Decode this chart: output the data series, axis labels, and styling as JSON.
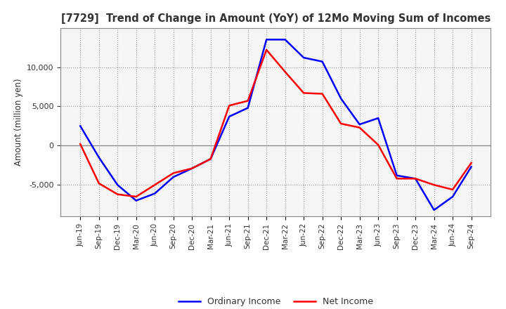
{
  "title": "[7729]  Trend of Change in Amount (YoY) of 12Mo Moving Sum of Incomes",
  "ylabel": "Amount (million yen)",
  "background_color": "#ffffff",
  "plot_background_color": "#f5f5f5",
  "grid_color": "#999999",
  "x_labels": [
    "Jun-19",
    "Sep-19",
    "Dec-19",
    "Mar-20",
    "Jun-20",
    "Sep-20",
    "Dec-20",
    "Mar-21",
    "Jun-21",
    "Sep-21",
    "Dec-21",
    "Mar-22",
    "Jun-22",
    "Sep-22",
    "Dec-22",
    "Mar-23",
    "Jun-23",
    "Sep-23",
    "Dec-23",
    "Mar-24",
    "Jun-24",
    "Sep-24"
  ],
  "ordinary_income": [
    2500,
    -1500,
    -5000,
    -7000,
    -6100,
    -4000,
    -2900,
    -1700,
    3700,
    4800,
    13500,
    13500,
    11200,
    10700,
    6000,
    2700,
    3500,
    -3800,
    -4200,
    -8200,
    -6500,
    -2700
  ],
  "net_income": [
    200,
    -4800,
    -6200,
    -6500,
    -5000,
    -3500,
    -2900,
    -1700,
    5100,
    5700,
    12200,
    9400,
    6700,
    6600,
    2800,
    2300,
    100,
    -4200,
    -4200,
    -5000,
    -5600,
    -2200
  ],
  "ordinary_color": "#0000ff",
  "net_color": "#ff0000",
  "line_width": 1.8,
  "ylim": [
    -9000,
    15000
  ],
  "yticks": [
    -5000,
    0,
    5000,
    10000
  ],
  "legend_labels": [
    "Ordinary Income",
    "Net Income"
  ]
}
